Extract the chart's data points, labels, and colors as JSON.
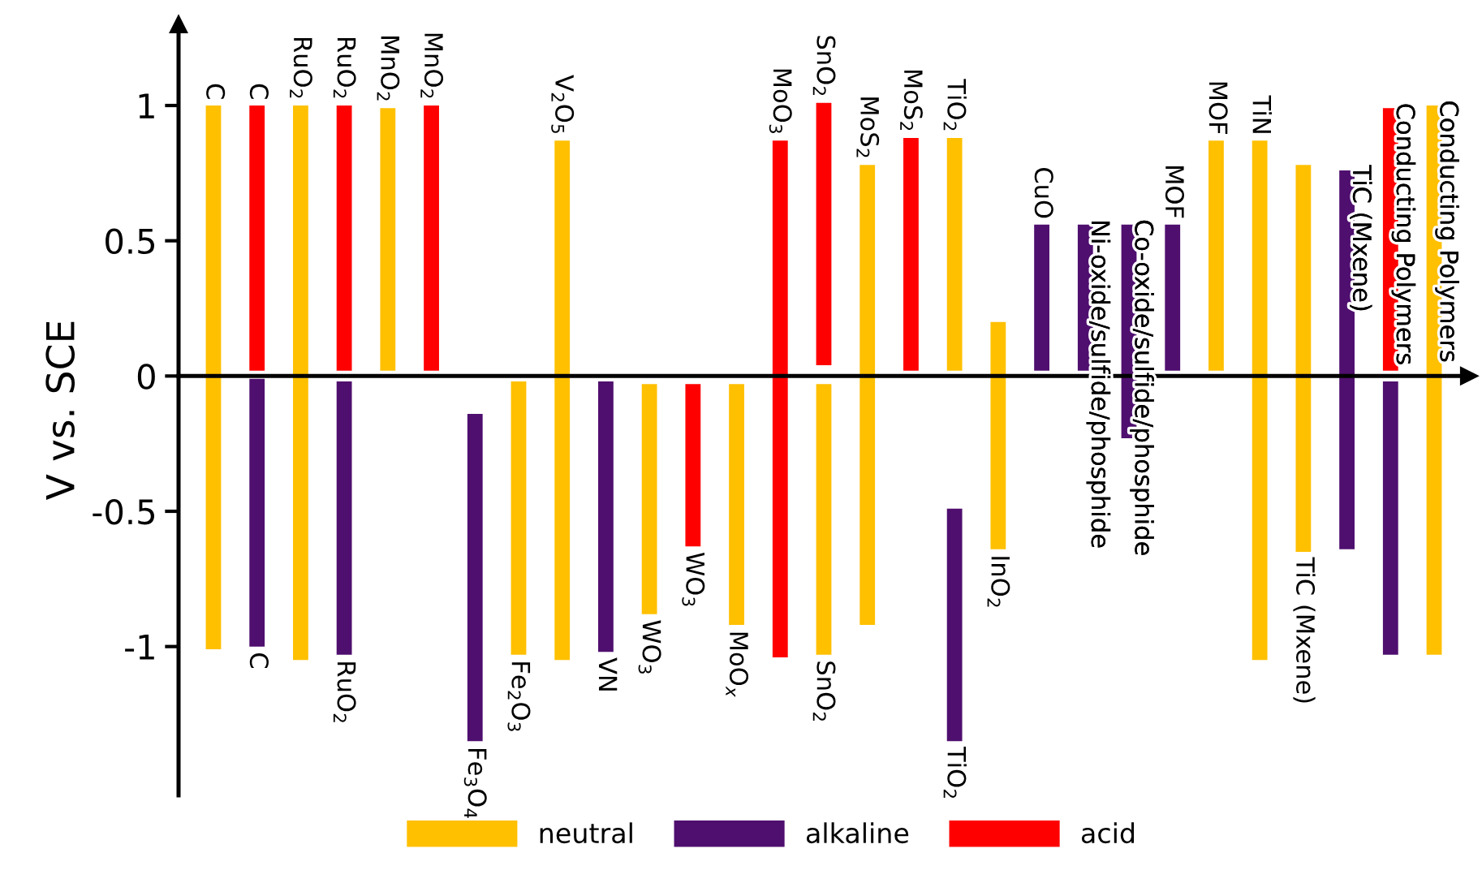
{
  "chart_data": {
    "type": "bar",
    "ylabel": "V vs. SCE",
    "categories": [
      null,
      null,
      null,
      null,
      null,
      null,
      null,
      null,
      null,
      null,
      null,
      null,
      null,
      null,
      null,
      null,
      null,
      null,
      null,
      null,
      null,
      null,
      null,
      null,
      null,
      null,
      null,
      null,
      null
    ],
    "series": [
      {
        "name": "neutral",
        "color": "#ffc000",
        "base": [
          -1.01,
          null,
          -1.05,
          null,
          0.02,
          null,
          null,
          -0.02,
          -1.05,
          null,
          -0.03,
          null,
          -0.03,
          null,
          -0.03,
          -0.92,
          null,
          0.02,
          0.2,
          null,
          null,
          null,
          null,
          0.02,
          -1.05,
          0.78,
          null,
          null,
          -1.03
        ],
        "values": [
          2.01,
          null,
          2.05,
          null,
          0.97,
          null,
          null,
          -1.01,
          1.92,
          null,
          -0.85,
          null,
          -0.89,
          null,
          -1.0,
          1.7,
          null,
          0.86,
          -0.84,
          null,
          null,
          null,
          null,
          0.85,
          1.92,
          -1.43,
          null,
          null,
          2.03
        ]
      },
      {
        "name": "alkaline",
        "color": "#4f0f6f",
        "base": [
          null,
          -0.01,
          null,
          -0.02,
          null,
          null,
          -0.14,
          null,
          null,
          -0.02,
          null,
          null,
          null,
          null,
          null,
          null,
          null,
          -0.49,
          null,
          0.02,
          0.02,
          -0.23,
          0.02,
          null,
          null,
          null,
          -0.64,
          -0.02,
          null
        ],
        "values": [
          null,
          -0.99,
          null,
          -1.01,
          null,
          null,
          -1.21,
          null,
          null,
          -1.0,
          null,
          null,
          null,
          null,
          null,
          null,
          null,
          -0.86,
          null,
          0.54,
          0.54,
          0.79,
          0.54,
          null,
          null,
          null,
          1.4,
          -1.01,
          null
        ]
      },
      {
        "name": "acid",
        "color": "#ff0000",
        "base": [
          null,
          0.02,
          null,
          0.02,
          null,
          0.02,
          null,
          null,
          null,
          null,
          null,
          -0.03,
          null,
          -1.04,
          0.04,
          null,
          0.02,
          null,
          null,
          null,
          null,
          null,
          null,
          null,
          null,
          null,
          null,
          0.02,
          null
        ],
        "values": [
          null,
          0.98,
          null,
          0.98,
          null,
          0.98,
          null,
          null,
          null,
          null,
          null,
          -0.6,
          null,
          1.91,
          0.97,
          null,
          0.86,
          null,
          null,
          null,
          null,
          null,
          null,
          null,
          null,
          null,
          null,
          0.97,
          null
        ]
      }
    ],
    "annotations": [
      {
        "text": "C",
        "y": 1.0
      },
      {
        "text": "C",
        "y": 1.0
      },
      {
        "text": "C",
        "y": -1.0
      },
      {
        "text": "RuO$_{2}$",
        "y": 1.0
      },
      {
        "text": "RuO$_{2}$",
        "y": 1.0
      },
      {
        "text": "RuO$_{2}$",
        "y": -1.03
      },
      {
        "text": "MnO$_{2}$",
        "y": 0.99
      },
      {
        "text": "MnO$_{2}$",
        "y": 1.0
      },
      {
        "text": "Fe$_{3}$O$_{4}$",
        "y": -1.35
      },
      {
        "text": "Fe$_{2}$O$_{3}$",
        "y": -1.03
      },
      {
        "text": "V$_{2}$O$_{5}$",
        "y": 0.87
      },
      {
        "text": "VN",
        "y": -1.02
      },
      {
        "text": "WO$_{3}$",
        "y": -0.88
      },
      {
        "text": "WO$_{3}$",
        "y": -0.63
      },
      {
        "text": "MoO$_{x}$",
        "y": -0.92
      },
      {
        "text": "MoO$_{3}$",
        "y": 0.87
      },
      {
        "text": "SnO$_{2}$",
        "y": 1.01
      },
      {
        "text": "SnO$_{2}$",
        "y": -1.03
      },
      {
        "text": "MoS$_{2}$",
        "y": 0.78
      },
      {
        "text": "MoS$_{2}$",
        "y": 0.88
      },
      {
        "text": "TiO$_{2}$",
        "y": 0.88
      },
      {
        "text": "TiO$_{2}$",
        "y": -1.35
      },
      {
        "text": "InO$_{2}$",
        "y": -0.64
      },
      {
        "text": "CuO",
        "y": 0.56
      },
      {
        "text": "Ni-oxide/sulfide/phosphide",
        "y": 0.56
      },
      {
        "text": "Co-oxide/sulfide/phosphide",
        "y": 0.56
      },
      {
        "text": "MOF",
        "y": 0.56
      },
      {
        "text": "MOF",
        "y": 0.87
      },
      {
        "text": "TiN",
        "y": 0.87
      },
      {
        "text": "TiC (Mxene)",
        "y": -0.65
      },
      {
        "text": "TiC (Mxene)",
        "y": 0.76
      },
      {
        "text": "Conducting Polymers",
        "y": 0.99
      },
      {
        "text": "Conducting Polymers",
        "y": 1.0
      }
    ],
    "ylim": [
      -1.55,
      1.3
    ],
    "yticks": [
      1,
      0.5,
      0,
      {
        "value": -0.5,
        "label": "-0.5"
      },
      {
        "value": -1,
        "label": "-1"
      }
    ],
    "tick_labels": "y",
    "legend": "bottom"
  }
}
